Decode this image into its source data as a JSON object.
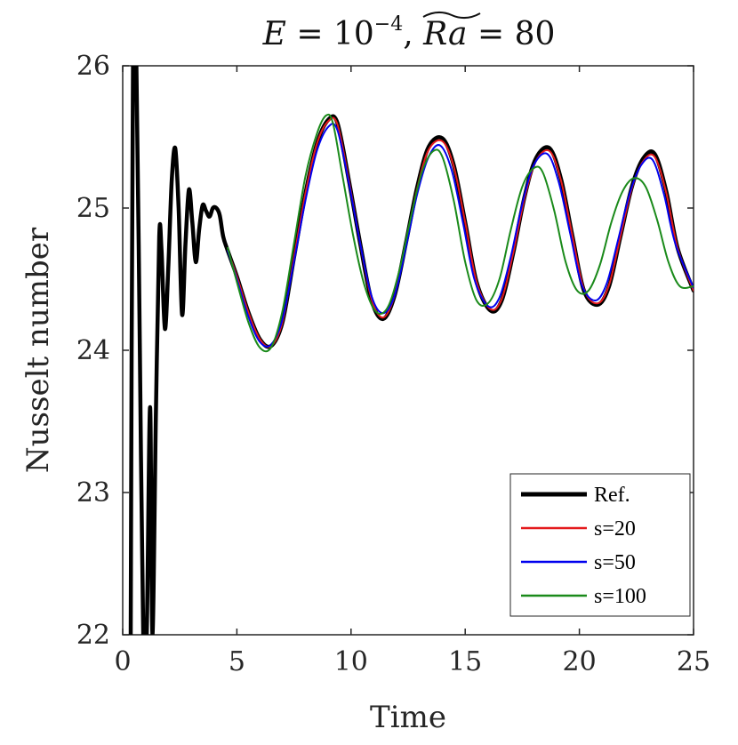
{
  "chart_data": {
    "type": "line",
    "title": "E = 10⁻⁴, Rã = 80",
    "title_parts": {
      "E": "E",
      "eq": " = ",
      "base": "10",
      "exp": "−4",
      "sep": ", ",
      "Ra": "Ra",
      "eq2": " = ",
      "val": "80"
    },
    "xlabel": "Time",
    "ylabel": "Nusselt number",
    "xlim": [
      0,
      25
    ],
    "ylim": [
      22,
      26
    ],
    "xticks": [
      0,
      5,
      10,
      15,
      20,
      25
    ],
    "yticks": [
      22,
      23,
      24,
      25,
      26
    ],
    "legend_position": "bottom-right",
    "series": [
      {
        "name": "Ref.",
        "color": "#000000",
        "style": "thick",
        "x": [
          0.35,
          0.45,
          0.6,
          0.75,
          0.9,
          1.05,
          1.2,
          1.3,
          1.45,
          1.6,
          1.7,
          1.85,
          2.0,
          2.15,
          2.3,
          2.45,
          2.6,
          2.75,
          2.9,
          3.05,
          3.2,
          3.35,
          3.5,
          3.65,
          3.8,
          3.95,
          4.1,
          4.25,
          4.4,
          4.6,
          5.0,
          5.5,
          6.0,
          6.5,
          7.0,
          7.5,
          8.0,
          8.5,
          9.0,
          9.4,
          9.9,
          10.4,
          10.9,
          11.4,
          11.9,
          12.4,
          12.9,
          13.4,
          14.0,
          14.5,
          15.0,
          15.5,
          16.1,
          16.6,
          17.1,
          17.6,
          18.1,
          18.7,
          19.2,
          19.7,
          20.2,
          20.8,
          21.3,
          21.8,
          22.3,
          22.8,
          23.3,
          23.8,
          24.3,
          25.0
        ],
        "y": [
          22.0,
          26.0,
          26.0,
          24.0,
          22.0,
          22.0,
          23.6,
          22.0,
          23.5,
          24.8,
          24.7,
          24.15,
          24.6,
          25.2,
          25.42,
          25.0,
          24.25,
          24.75,
          25.13,
          24.9,
          24.62,
          24.85,
          25.02,
          24.98,
          24.94,
          25.0,
          25.0,
          24.95,
          24.8,
          24.7,
          24.52,
          24.27,
          24.08,
          24.03,
          24.2,
          24.65,
          25.1,
          25.45,
          25.62,
          25.6,
          25.2,
          24.75,
          24.35,
          24.22,
          24.38,
          24.75,
          25.15,
          25.43,
          25.49,
          25.3,
          24.9,
          24.48,
          24.28,
          24.35,
          24.68,
          25.08,
          25.35,
          25.42,
          25.2,
          24.8,
          24.42,
          24.32,
          24.45,
          24.8,
          25.15,
          25.35,
          25.38,
          25.12,
          24.72,
          24.42
        ]
      },
      {
        "name": "s=20",
        "color": "#e41a1c",
        "style": "thin",
        "x": [
          4.6,
          5.0,
          5.5,
          6.0,
          6.5,
          7.0,
          7.5,
          8.0,
          8.5,
          9.0,
          9.4,
          9.9,
          10.4,
          10.9,
          11.4,
          11.9,
          12.4,
          12.9,
          13.4,
          14.0,
          14.5,
          15.0,
          15.5,
          16.1,
          16.6,
          17.1,
          17.6,
          18.1,
          18.7,
          19.2,
          19.7,
          20.2,
          20.8,
          21.3,
          21.8,
          22.3,
          22.8,
          23.3,
          23.8,
          24.3,
          25.0
        ],
        "y": [
          24.7,
          24.52,
          24.27,
          24.08,
          24.03,
          24.2,
          24.65,
          25.1,
          25.45,
          25.61,
          25.59,
          25.2,
          24.75,
          24.36,
          24.23,
          24.38,
          24.75,
          25.14,
          25.41,
          25.47,
          25.29,
          24.9,
          24.48,
          24.29,
          24.36,
          24.68,
          25.07,
          25.33,
          25.4,
          25.19,
          24.8,
          24.43,
          24.33,
          24.46,
          24.8,
          25.14,
          25.33,
          25.36,
          25.11,
          24.72,
          24.42
        ]
      },
      {
        "name": "s=50",
        "color": "#0000ee",
        "style": "thin",
        "x": [
          4.6,
          5.0,
          5.5,
          6.0,
          6.5,
          7.0,
          7.5,
          8.0,
          8.5,
          9.0,
          9.4,
          9.9,
          10.4,
          10.9,
          11.4,
          11.9,
          12.4,
          12.9,
          13.4,
          13.9,
          14.4,
          14.9,
          15.4,
          16.0,
          16.5,
          17.0,
          17.5,
          18.0,
          18.6,
          19.1,
          19.6,
          20.1,
          20.7,
          21.2,
          21.7,
          22.2,
          22.7,
          23.2,
          23.7,
          24.2,
          25.0
        ],
        "y": [
          24.7,
          24.5,
          24.24,
          24.06,
          24.04,
          24.22,
          24.62,
          25.05,
          25.4,
          25.57,
          25.55,
          25.18,
          24.75,
          24.38,
          24.26,
          24.38,
          24.72,
          25.1,
          25.36,
          25.44,
          25.27,
          24.9,
          24.5,
          24.31,
          24.37,
          24.66,
          25.03,
          25.3,
          25.38,
          25.18,
          24.82,
          24.46,
          24.35,
          24.47,
          24.78,
          25.1,
          25.3,
          25.34,
          25.1,
          24.75,
          24.44
        ]
      },
      {
        "name": "s=100",
        "color": "#1a8a1a",
        "style": "thin",
        "x": [
          4.6,
          5.0,
          5.5,
          6.0,
          6.5,
          7.0,
          7.5,
          8.0,
          8.5,
          8.9,
          9.2,
          9.6,
          10.1,
          10.6,
          11.1,
          11.6,
          12.1,
          12.6,
          13.1,
          13.6,
          14.0,
          14.5,
          15.0,
          15.5,
          16.0,
          16.5,
          17.0,
          17.5,
          18.0,
          18.4,
          18.9,
          19.4,
          19.9,
          20.4,
          20.9,
          21.4,
          21.9,
          22.4,
          22.9,
          23.4,
          23.9,
          24.4,
          25.0
        ],
        "y": [
          24.72,
          24.48,
          24.2,
          24.02,
          24.02,
          24.28,
          24.75,
          25.22,
          25.52,
          25.65,
          25.6,
          25.25,
          24.8,
          24.45,
          24.27,
          24.3,
          24.55,
          24.92,
          25.25,
          25.4,
          25.36,
          25.05,
          24.62,
          24.35,
          24.33,
          24.5,
          24.85,
          25.15,
          25.28,
          25.25,
          24.98,
          24.62,
          24.42,
          24.42,
          24.6,
          24.9,
          25.12,
          25.21,
          25.15,
          24.92,
          24.62,
          24.45,
          24.45
        ]
      }
    ]
  }
}
